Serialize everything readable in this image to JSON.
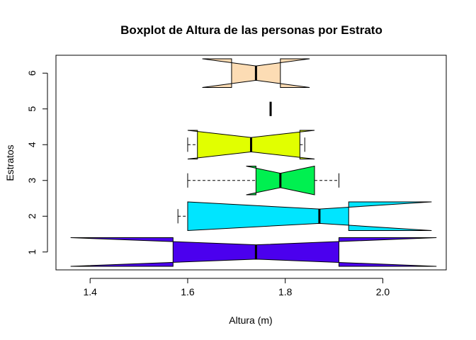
{
  "chart_data": {
    "type": "boxplot",
    "orientation": "horizontal",
    "notch": true,
    "title": "Boxplot de Altura de las personas por Estrato",
    "xlabel": "Altura (m)",
    "ylabel": "Estratos",
    "xlim": [
      1.33,
      2.13
    ],
    "ylim": [
      0.5,
      6.5
    ],
    "xticks": [
      1.4,
      1.6,
      1.8,
      2.0
    ],
    "xtick_labels": [
      "1.4",
      "1.6",
      "1.8",
      "2.0"
    ],
    "yticks": [
      1,
      2,
      3,
      4,
      5,
      6
    ],
    "ytick_labels": [
      "1",
      "2",
      "3",
      "4",
      "5",
      "6"
    ],
    "grid": false,
    "legend": "none",
    "series": [
      {
        "category": "1",
        "color": "#4B00EE",
        "min": 1.57,
        "q1": 1.57,
        "median": 1.74,
        "q3": 1.91,
        "max": 1.91,
        "notch_low": 1.36,
        "notch_high": 2.11
      },
      {
        "category": "2",
        "color": "#00E5FF",
        "min": 1.58,
        "q1": 1.6,
        "median": 1.87,
        "q3": 1.93,
        "max": 1.93,
        "notch_low": 1.6,
        "notch_high": 2.1
      },
      {
        "category": "3",
        "color": "#00F050",
        "min": 1.6,
        "q1": 1.74,
        "median": 1.79,
        "q3": 1.86,
        "max": 1.91,
        "notch_low": 1.72,
        "notch_high": 1.86
      },
      {
        "category": "4",
        "color": "#E1FF00",
        "min": 1.6,
        "q1": 1.62,
        "median": 1.73,
        "q3": 1.83,
        "max": 1.84,
        "notch_low": 1.6,
        "notch_high": 1.86
      },
      {
        "category": "5",
        "color": "#D0D0D0",
        "min": 1.77,
        "q1": 1.77,
        "median": 1.77,
        "q3": 1.77,
        "max": 1.77,
        "notch_low": 1.77,
        "notch_high": 1.77
      },
      {
        "category": "6",
        "color": "#FCDCB4",
        "min": 1.69,
        "q1": 1.69,
        "median": 1.74,
        "q3": 1.79,
        "max": 1.79,
        "notch_low": 1.63,
        "notch_high": 1.85
      }
    ]
  }
}
